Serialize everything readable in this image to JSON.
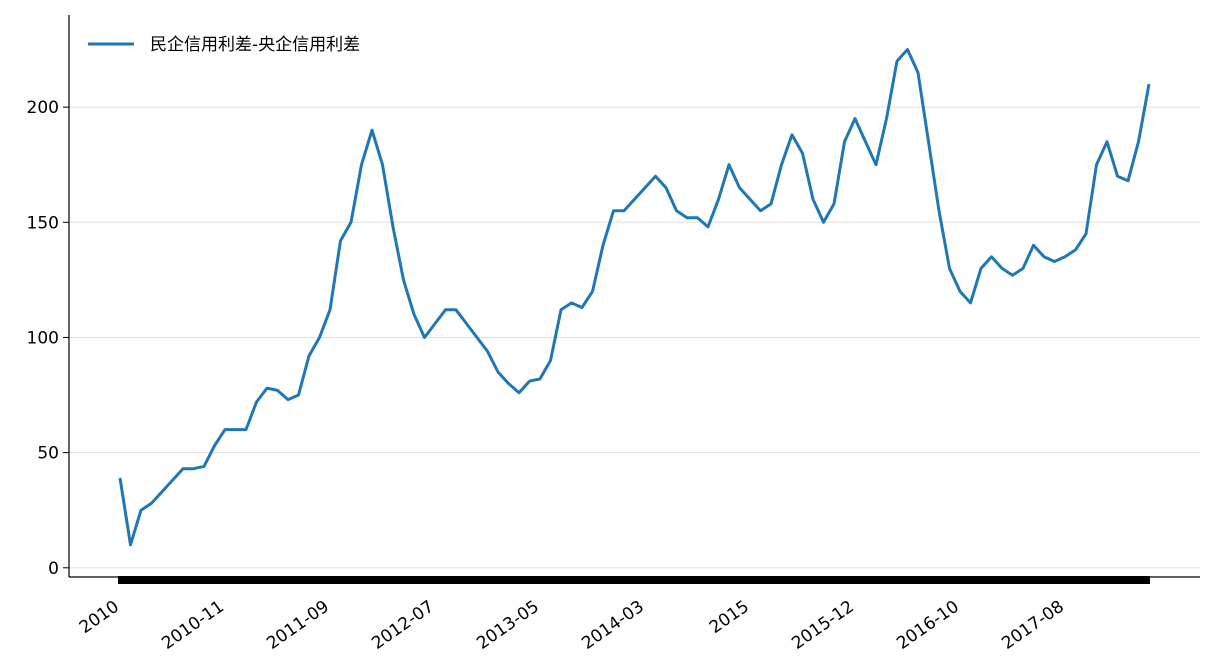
{
  "chart_data": {
    "type": "line",
    "categories": [
      "2010",
      null,
      null,
      null,
      null,
      null,
      null,
      null,
      null,
      null,
      "2010-11",
      null,
      null,
      null,
      null,
      null,
      null,
      null,
      null,
      null,
      "2011-09",
      null,
      null,
      null,
      null,
      null,
      null,
      null,
      null,
      null,
      "2012-07",
      null,
      null,
      null,
      null,
      null,
      null,
      null,
      null,
      null,
      "2013-05",
      null,
      null,
      null,
      null,
      null,
      null,
      null,
      null,
      null,
      "2014-03",
      null,
      null,
      null,
      null,
      null,
      null,
      null,
      null,
      null,
      "2015",
      null,
      null,
      null,
      null,
      null,
      null,
      null,
      null,
      null,
      "2015-12",
      null,
      null,
      null,
      null,
      null,
      null,
      null,
      null,
      null,
      "2016-10",
      null,
      null,
      null,
      null,
      null,
      null,
      null,
      null,
      null,
      "2017-08",
      null,
      null,
      null,
      null,
      null,
      null,
      null,
      null
    ],
    "series": [
      {
        "name": "民企信用利差-央企信用利差",
        "color": "#1f77b4",
        "values": [
          39,
          10,
          25,
          28,
          33,
          38,
          43,
          43,
          44,
          53,
          60,
          60,
          60,
          72,
          78,
          77,
          73,
          75,
          92,
          100,
          112,
          142,
          150,
          175,
          190,
          175,
          148,
          125,
          110,
          100,
          106,
          112,
          112,
          106,
          100,
          94,
          85,
          80,
          76,
          81,
          82,
          90,
          112,
          115,
          113,
          120,
          140,
          155,
          155,
          160,
          165,
          170,
          165,
          155,
          152,
          152,
          148,
          160,
          175,
          165,
          160,
          155,
          158,
          175,
          188,
          180,
          160,
          150,
          158,
          185,
          195,
          185,
          175,
          195,
          220,
          225,
          215,
          185,
          155,
          130,
          120,
          115,
          130,
          135,
          130,
          127,
          130,
          140,
          135,
          133,
          135,
          138,
          145,
          175,
          185,
          170,
          168,
          185,
          210
        ]
      }
    ],
    "ylim": [
      -4,
      240
    ],
    "yticks": [
      0,
      50,
      100,
      150,
      200
    ],
    "grid": true,
    "legend": "upper left"
  }
}
